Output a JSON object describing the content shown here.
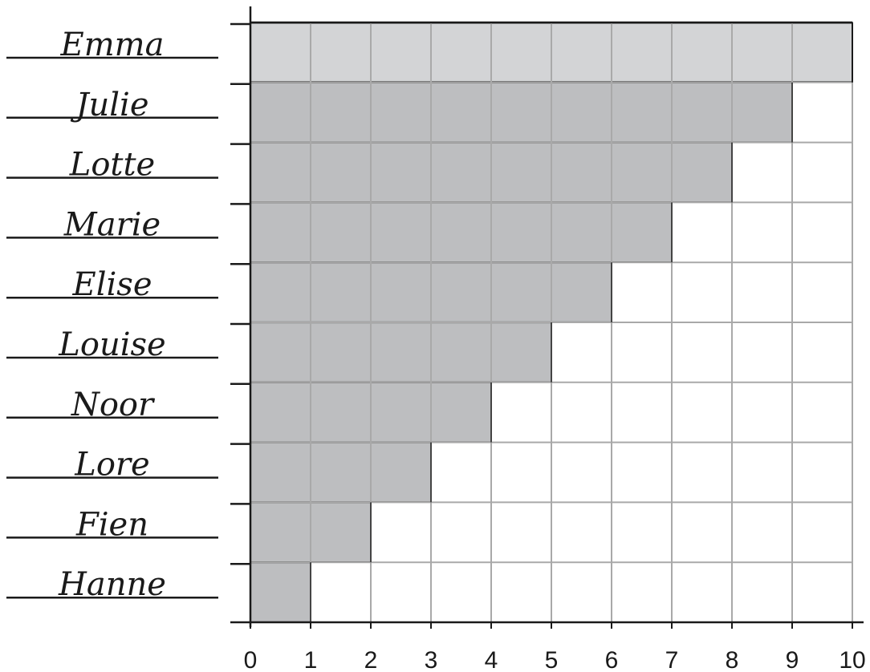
{
  "chart_data": {
    "type": "bar",
    "orientation": "horizontal",
    "categories": [
      "Emma",
      "Julie",
      "Lotte",
      "Marie",
      "Elise",
      "Louise",
      "Noor",
      "Lore",
      "Fien",
      "Hanne"
    ],
    "values": [
      10,
      9,
      8,
      7,
      6,
      5,
      4,
      3,
      2,
      1
    ],
    "x_ticks": [
      "0",
      "1",
      "2",
      "3",
      "4",
      "5",
      "6",
      "7",
      "8",
      "9",
      "10"
    ],
    "xlim": [
      0,
      10
    ],
    "grid": true,
    "colors": {
      "bar": "#bdbec0",
      "bar_highlight": "#d3d4d6",
      "grid": "#a9a9a9",
      "axis": "#1a1a1a"
    }
  }
}
